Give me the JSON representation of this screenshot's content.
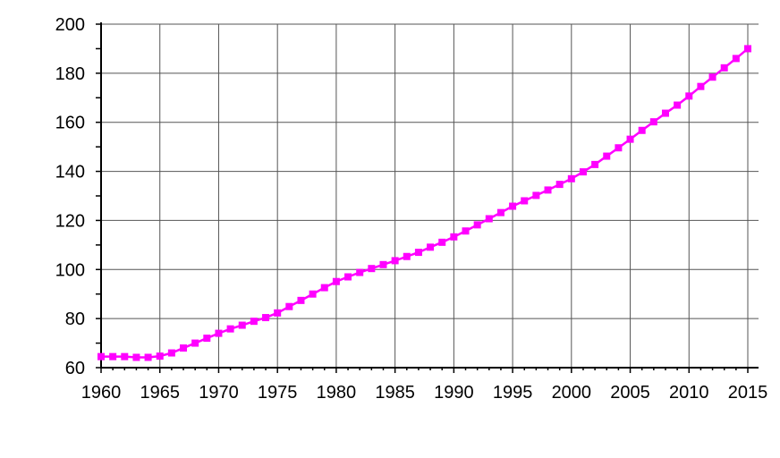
{
  "chart_data": {
    "type": "line",
    "title": "",
    "xlabel": "",
    "ylabel": "",
    "xlim": [
      1960,
      2015
    ],
    "ylim": [
      60,
      200
    ],
    "x_ticks": [
      1960,
      1965,
      1970,
      1975,
      1980,
      1985,
      1990,
      1995,
      2000,
      2005,
      2010,
      2015
    ],
    "y_ticks": [
      60,
      80,
      100,
      120,
      140,
      160,
      180,
      200
    ],
    "grid": true,
    "legend": "none",
    "color": "#ff00ff",
    "marker": "square",
    "x": [
      1960,
      1961,
      1962,
      1963,
      1964,
      1965,
      1966,
      1967,
      1968,
      1969,
      1970,
      1971,
      1972,
      1973,
      1974,
      1975,
      1976,
      1977,
      1978,
      1979,
      1980,
      1981,
      1982,
      1983,
      1984,
      1985,
      1986,
      1987,
      1988,
      1989,
      1990,
      1991,
      1992,
      1993,
      1994,
      1995,
      1996,
      1997,
      1998,
      1999,
      2000,
      2001,
      2002,
      2003,
      2004,
      2005,
      2006,
      2007,
      2008,
      2009,
      2010,
      2011,
      2012,
      2013,
      2014,
      2015
    ],
    "series": [
      {
        "values": [
          64.5,
          64.5,
          64.5,
          64.2,
          64.2,
          64.7,
          66.0,
          68.0,
          70.0,
          72.0,
          74.0,
          75.8,
          77.3,
          78.9,
          80.4,
          82.3,
          84.9,
          87.4,
          90.0,
          92.6,
          95.1,
          97.0,
          98.8,
          100.4,
          102.0,
          103.6,
          105.3,
          107.0,
          109.1,
          111.1,
          113.3,
          115.7,
          118.2,
          120.7,
          123.2,
          125.8,
          128.0,
          130.2,
          132.4,
          134.7,
          137.0,
          139.8,
          142.8,
          146.2,
          149.6,
          153.1,
          156.7,
          160.2,
          163.7,
          167.0,
          170.7,
          174.6,
          178.4,
          182.2,
          186.0,
          190.0
        ]
      }
    ]
  }
}
